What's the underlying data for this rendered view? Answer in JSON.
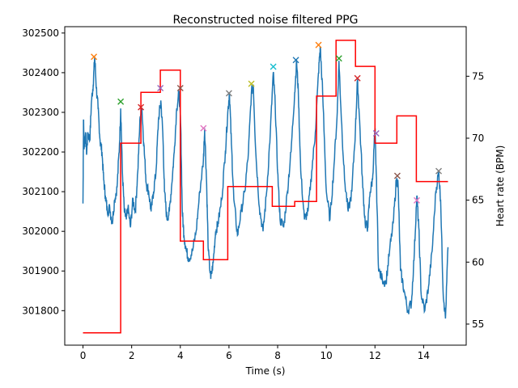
{
  "chart_data": {
    "type": "line",
    "title": "Reconstructed noise filtered PPG",
    "xlabel": "Time (s)",
    "ylabel_right": "Heart rate (BPM)",
    "xlim": [
      -0.75,
      15.75
    ],
    "ylim_left": [
      301713,
      302516
    ],
    "ylim_right": [
      53.3,
      79.0
    ],
    "xticks": [
      0,
      2,
      4,
      6,
      8,
      10,
      12,
      14
    ],
    "yticks_left": [
      301800,
      301900,
      302000,
      302100,
      302200,
      302300,
      302400,
      302500
    ],
    "yticks_right": [
      55,
      60,
      65,
      70,
      75
    ],
    "ppg_color": "#1f77b4",
    "hr_color": "#ff0000",
    "series": [
      {
        "kind": "ppg",
        "axis": "left",
        "x": [
          0.0,
          0.02,
          0.05,
          0.1,
          0.15,
          0.2,
          0.28,
          0.35,
          0.42,
          0.48,
          0.55,
          0.62,
          0.7,
          0.78,
          0.85,
          0.92,
          1.0,
          1.1,
          1.2,
          1.3,
          1.4,
          1.5,
          1.55,
          1.62,
          1.7,
          1.78,
          1.85,
          1.95,
          2.05,
          2.15,
          2.25,
          2.35,
          2.42,
          2.5,
          2.6,
          2.7,
          2.8,
          2.9,
          3.0,
          3.1,
          3.2,
          3.28,
          3.35,
          3.45,
          3.55,
          3.65,
          3.75,
          3.85,
          3.95,
          4.02,
          4.08,
          4.15,
          4.25,
          4.35,
          4.5,
          4.65,
          4.8,
          4.95,
          5.0,
          5.08,
          5.15,
          5.25,
          5.35,
          5.45,
          5.55,
          5.7,
          5.85,
          5.95,
          6.02,
          6.1,
          6.2,
          6.35,
          6.5,
          6.65,
          6.8,
          6.92,
          7.0,
          7.1,
          7.25,
          7.4,
          7.55,
          7.7,
          7.82,
          7.9,
          8.0,
          8.1,
          8.25,
          8.4,
          8.55,
          8.7,
          8.78,
          8.85,
          8.95,
          9.1,
          9.25,
          9.4,
          9.55,
          9.68,
          9.75,
          9.85,
          10.0,
          10.15,
          10.3,
          10.45,
          10.52,
          10.6,
          10.75,
          10.9,
          11.05,
          11.2,
          11.28,
          11.35,
          11.5,
          11.6,
          11.7,
          11.8,
          11.9,
          12.0,
          12.05,
          12.15,
          12.3,
          12.45,
          12.6,
          12.75,
          12.88,
          12.95,
          13.05,
          13.2,
          13.35,
          13.5,
          13.62,
          13.72,
          13.8,
          13.9,
          14.05,
          14.2,
          14.35,
          14.5,
          14.62,
          14.7,
          14.8,
          14.9,
          15.0
        ],
        "y": [
          302070,
          302280,
          302210,
          302250,
          302195,
          302250,
          302230,
          302330,
          302370,
          302440,
          302360,
          302310,
          302230,
          302200,
          302130,
          302090,
          302050,
          302060,
          302020,
          302080,
          302110,
          302220,
          302310,
          302150,
          302050,
          302030,
          302060,
          302010,
          302080,
          302050,
          302150,
          302290,
          302310,
          302220,
          302120,
          302100,
          302050,
          302100,
          302150,
          302280,
          302330,
          302250,
          302100,
          302030,
          302050,
          302120,
          302200,
          302310,
          302350,
          302260,
          302050,
          301990,
          301950,
          301930,
          301950,
          302000,
          302100,
          302180,
          302260,
          302120,
          301950,
          301880,
          301920,
          302000,
          302020,
          302080,
          302200,
          302300,
          302350,
          302220,
          302080,
          301990,
          302050,
          302100,
          302200,
          302350,
          302370,
          302200,
          302060,
          302000,
          302100,
          302250,
          302400,
          302320,
          302150,
          302030,
          302010,
          302100,
          302200,
          302350,
          302430,
          302350,
          302150,
          302030,
          302050,
          302150,
          302250,
          302400,
          302465,
          302350,
          302100,
          302030,
          302150,
          302300,
          302430,
          302310,
          302130,
          302050,
          302100,
          302260,
          302380,
          302300,
          302110,
          302020,
          302010,
          302100,
          302130,
          302260,
          302150,
          301900,
          301880,
          301870,
          301950,
          302020,
          302130,
          302120,
          301900,
          301850,
          301800,
          301820,
          301950,
          302090,
          302010,
          301840,
          301800,
          301860,
          301950,
          302100,
          302150,
          302080,
          301850,
          301780,
          301960
        ]
      },
      {
        "kind": "hr",
        "axis": "right",
        "x": [
          0.0,
          1.55,
          1.55,
          2.38,
          2.38,
          3.18,
          3.18,
          4.0,
          4.0,
          4.95,
          4.95,
          5.95,
          5.95,
          7.78,
          7.78,
          8.7,
          8.7,
          9.6,
          9.6,
          10.4,
          10.4,
          11.2,
          11.2,
          12.0,
          12.0,
          12.9,
          12.9,
          13.7,
          13.7,
          15.0
        ],
        "y": [
          54.3,
          54.3,
          69.6,
          69.6,
          73.7,
          73.7,
          75.5,
          75.5,
          61.7,
          61.7,
          60.2,
          60.2,
          66.1,
          66.1,
          64.5,
          64.5,
          64.9,
          64.9,
          73.4,
          73.4,
          77.9,
          77.9,
          75.8,
          75.8,
          69.6,
          69.6,
          71.8,
          71.8,
          66.5,
          66.5
        ]
      }
    ],
    "peaks": [
      {
        "x": 0.45,
        "y": 302440,
        "color": "#ff7f0e"
      },
      {
        "x": 1.55,
        "y": 302327,
        "color": "#2ca02c"
      },
      {
        "x": 2.38,
        "y": 302313,
        "color": "#d62728"
      },
      {
        "x": 3.18,
        "y": 302361,
        "color": "#9467bd"
      },
      {
        "x": 4.0,
        "y": 302361,
        "color": "#8c564b"
      },
      {
        "x": 4.95,
        "y": 302260,
        "color": "#e377c2"
      },
      {
        "x": 6.0,
        "y": 302348,
        "color": "#7f7f7f"
      },
      {
        "x": 6.92,
        "y": 302372,
        "color": "#bcbd22"
      },
      {
        "x": 7.82,
        "y": 302415,
        "color": "#17becf"
      },
      {
        "x": 8.75,
        "y": 302432,
        "color": "#1f77b4"
      },
      {
        "x": 9.68,
        "y": 302470,
        "color": "#ff7f0e"
      },
      {
        "x": 10.52,
        "y": 302436,
        "color": "#2ca02c"
      },
      {
        "x": 11.28,
        "y": 302386,
        "color": "#d62728"
      },
      {
        "x": 12.05,
        "y": 302247,
        "color": "#9467bd"
      },
      {
        "x": 12.92,
        "y": 302140,
        "color": "#8c564b"
      },
      {
        "x": 13.72,
        "y": 302078,
        "color": "#e377c2"
      },
      {
        "x": 14.62,
        "y": 302152,
        "color": "#7f7f7f"
      }
    ],
    "grid": false,
    "legend": "none"
  }
}
